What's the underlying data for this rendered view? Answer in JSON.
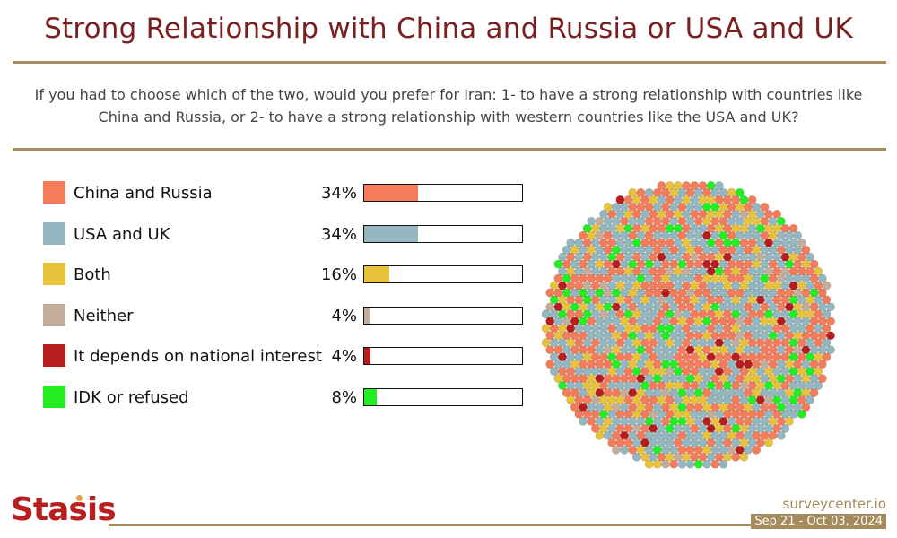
{
  "title": "Strong Relationship with China and Russia or USA and UK",
  "question": "If you had to choose which of the two, would you prefer for Iran: 1- to have a strong relationship with countries like China and Russia, or 2- to have a strong relationship with western countries like the USA and UK?",
  "footer": {
    "logo": "Stasis",
    "source": "surveycenter.io",
    "date": "Sep 21 - Oct 03, 2024"
  },
  "chart_data": {
    "type": "bar",
    "categories": [
      "China and Russia",
      "USA and UK",
      "Both",
      "Neither",
      "It depends on national interest",
      "IDK or refused"
    ],
    "values": [
      34,
      34,
      16,
      4,
      4,
      8
    ],
    "value_labels": [
      "34%",
      "34%",
      "16%",
      "4%",
      "4%",
      "8%"
    ],
    "colors": [
      "#f47c5a",
      "#93b6bf",
      "#e8c23a",
      "#c4ad9b",
      "#b81d1d",
      "#22ee22"
    ],
    "ylim": [
      0,
      100
    ]
  }
}
